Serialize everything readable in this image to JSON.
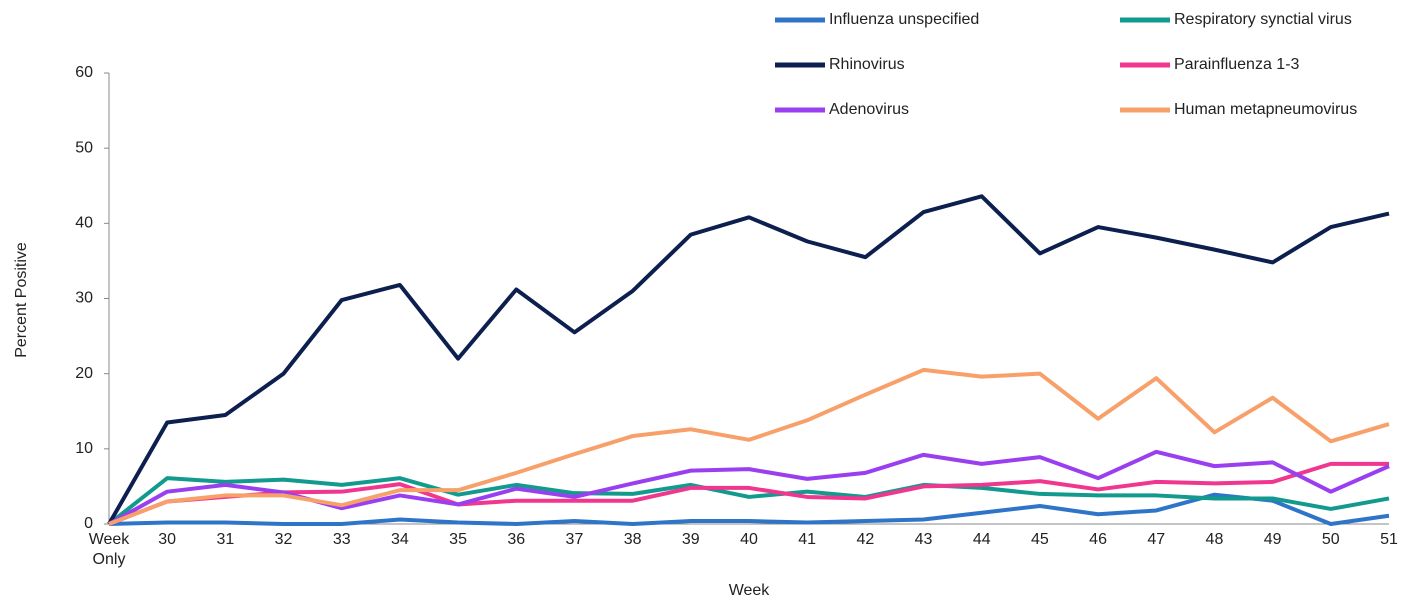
{
  "chart_data": {
    "type": "line",
    "x_label": "Week",
    "y_label": "Percent Positive",
    "categories": [
      "Week Only",
      "30",
      "31",
      "32",
      "33",
      "34",
      "35",
      "36",
      "37",
      "38",
      "39",
      "40",
      "41",
      "42",
      "43",
      "44",
      "45",
      "46",
      "47",
      "48",
      "49",
      "50",
      "51"
    ],
    "ylim": [
      0,
      60
    ],
    "yticks": [
      0,
      10,
      20,
      30,
      40,
      50,
      60
    ],
    "grid": false,
    "series": [
      {
        "name": "Influenza unspecified",
        "color": "#2e75c9",
        "values": [
          0,
          0.2,
          0.2,
          0,
          0,
          0.6,
          0.2,
          0,
          0.4,
          0,
          0.4,
          0.4,
          0.2,
          0.4,
          0.6,
          1.5,
          2.4,
          1.3,
          1.8,
          3.9,
          3.1,
          0,
          1.1
        ]
      },
      {
        "name": "Respiratory synctial virus",
        "color": "#139a8e",
        "values": [
          0,
          6.1,
          5.6,
          5.9,
          5.2,
          6.1,
          3.9,
          5.2,
          4.1,
          4,
          5.2,
          3.6,
          4.3,
          3.6,
          5.2,
          4.8,
          4,
          3.8,
          3.8,
          3.4,
          3.4,
          2,
          3.4
        ]
      },
      {
        "name": "Rhinovirus",
        "color": "#0c1f4f",
        "values": [
          0,
          13.5,
          14.5,
          20,
          29.8,
          31.8,
          22,
          31.2,
          25.5,
          31,
          38.5,
          40.8,
          37.6,
          35.5,
          41.5,
          43.6,
          36,
          39.5,
          38.1,
          36.5,
          34.8,
          39.5,
          41.3
        ]
      },
      {
        "name": "Parainfluenza 1-3",
        "color": "#f0368e",
        "values": [
          0,
          3,
          3.6,
          4.2,
          4.3,
          5.3,
          2.6,
          3.1,
          3.1,
          3.1,
          4.8,
          4.8,
          3.6,
          3.4,
          5,
          5.2,
          5.7,
          4.6,
          5.6,
          5.4,
          5.6,
          8,
          8
        ]
      },
      {
        "name": "Adenovirus",
        "color": "#9a3ff0",
        "values": [
          0,
          4.3,
          5.2,
          4.2,
          2.1,
          3.8,
          2.6,
          4.7,
          3.6,
          5.4,
          7.1,
          7.3,
          6,
          6.8,
          9.2,
          8,
          8.9,
          6.1,
          9.6,
          7.7,
          8.2,
          4.3,
          7.7
        ]
      },
      {
        "name": "Human metapneumovirus",
        "color": "#f7a06a",
        "values": [
          0,
          3,
          3.8,
          3.8,
          2.5,
          4.5,
          4.5,
          6.8,
          9.3,
          11.7,
          12.6,
          11.2,
          13.8,
          17.2,
          20.5,
          19.6,
          20,
          14,
          19.4,
          12.2,
          16.8,
          11,
          13.3
        ]
      }
    ]
  }
}
